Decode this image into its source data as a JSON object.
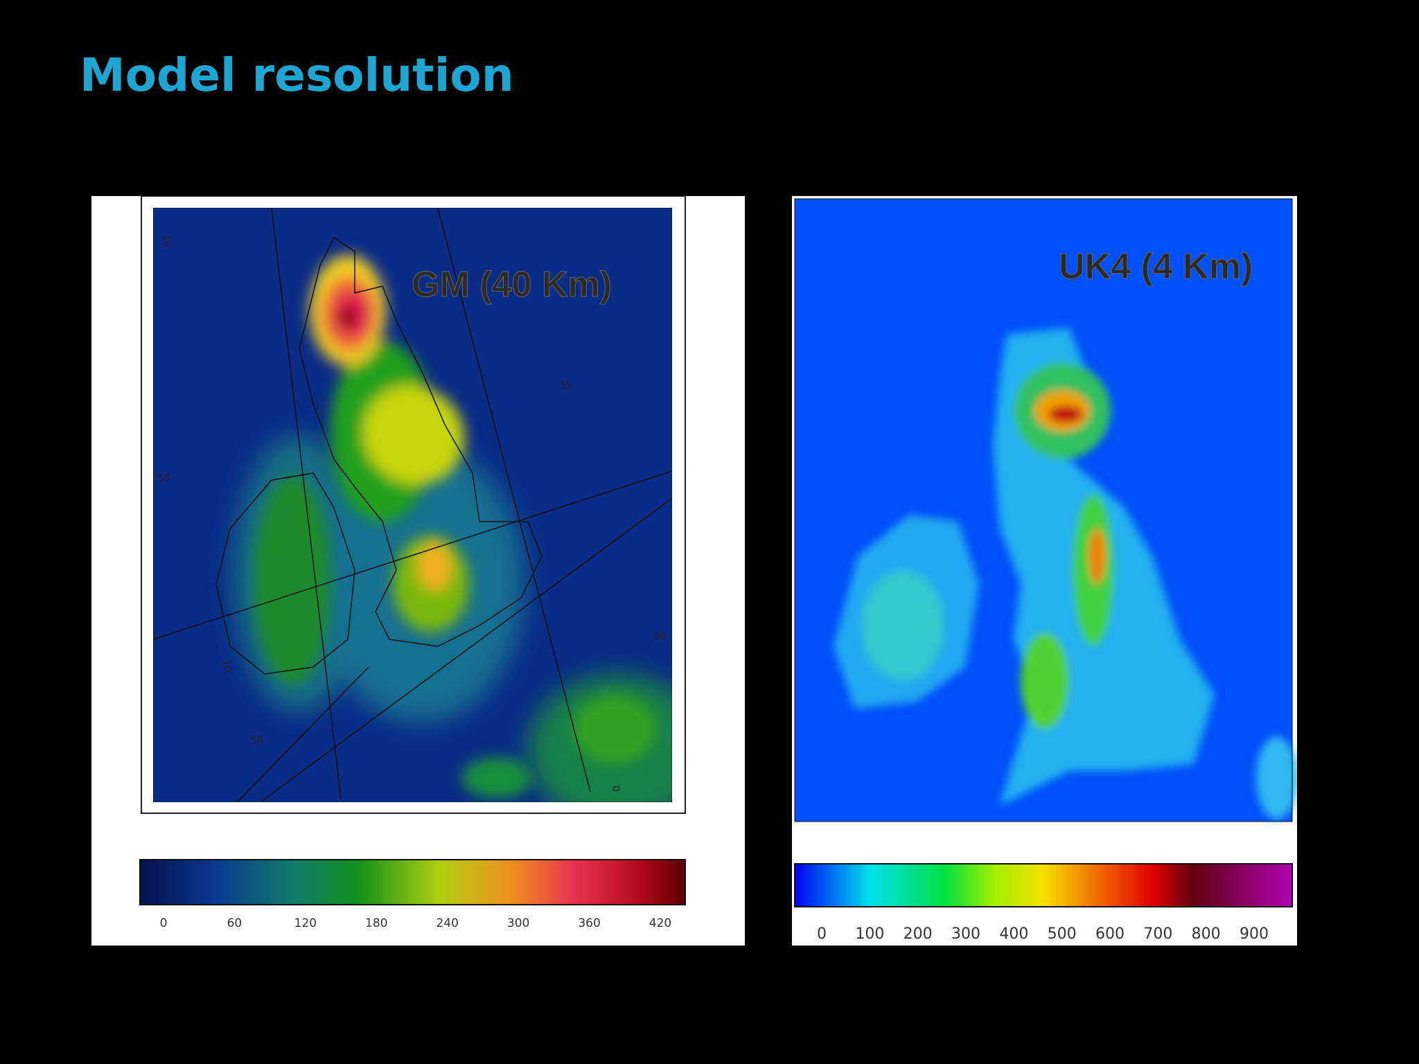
{
  "title": "Model resolution",
  "panels": [
    {
      "label": "GM (40 Km)",
      "colorbar_ticks": [
        0,
        60,
        120,
        180,
        240,
        300,
        360,
        420
      ],
      "grid_labels": [
        "10",
        "55",
        "55",
        "50",
        "50",
        "10",
        "0"
      ]
    },
    {
      "label": "UK4 (4 Km)",
      "colorbar_ticks": [
        0,
        100,
        200,
        300,
        400,
        500,
        600,
        700,
        800,
        900
      ]
    }
  ]
}
